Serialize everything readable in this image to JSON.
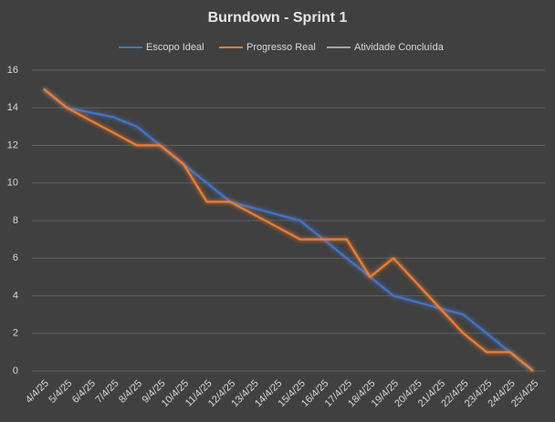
{
  "chart_data": {
    "type": "line",
    "title": "Burndown - Sprint 1",
    "categories": [
      "4/4/25",
      "5/4/25",
      "6/4/25",
      "7/4/25",
      "8/4/25",
      "9/4/25",
      "10/4/25",
      "11/4/25",
      "12/4/25",
      "13/4/25",
      "14/4/25",
      "15/4/25",
      "16/4/25",
      "17/4/25",
      "18/4/25",
      "19/4/25",
      "20/4/25",
      "21/4/25",
      "22/4/25",
      "23/4/25",
      "24/4/25",
      "25/4/25"
    ],
    "series": [
      {
        "name": "Escopo Ideal",
        "color": "#4472c4",
        "values": [
          15,
          14,
          13.75,
          13.5,
          13,
          12,
          11,
          10,
          9,
          8.67,
          8.33,
          8,
          7,
          6,
          5,
          4,
          3.67,
          3.33,
          3,
          2,
          1,
          0
        ]
      },
      {
        "name": "Progresso Real",
        "color": "#ed7d31",
        "values": [
          15,
          14,
          13.33,
          12.67,
          12,
          12,
          11,
          9,
          9,
          8.33,
          7.67,
          7,
          7,
          7,
          5,
          6,
          4.67,
          3.33,
          2,
          1,
          1,
          0
        ]
      },
      {
        "name": "Atividade Concluída",
        "color": "#a5a5a5",
        "values": [
          null,
          null,
          null,
          null,
          null,
          null,
          null,
          null,
          null,
          null,
          null,
          null,
          null,
          null,
          null,
          null,
          null,
          null,
          null,
          null,
          null,
          null
        ]
      }
    ],
    "ylim": [
      0,
      16
    ],
    "yticks": [
      0,
      2,
      4,
      6,
      8,
      10,
      12,
      14,
      16
    ],
    "grid": true,
    "legend": "top"
  }
}
